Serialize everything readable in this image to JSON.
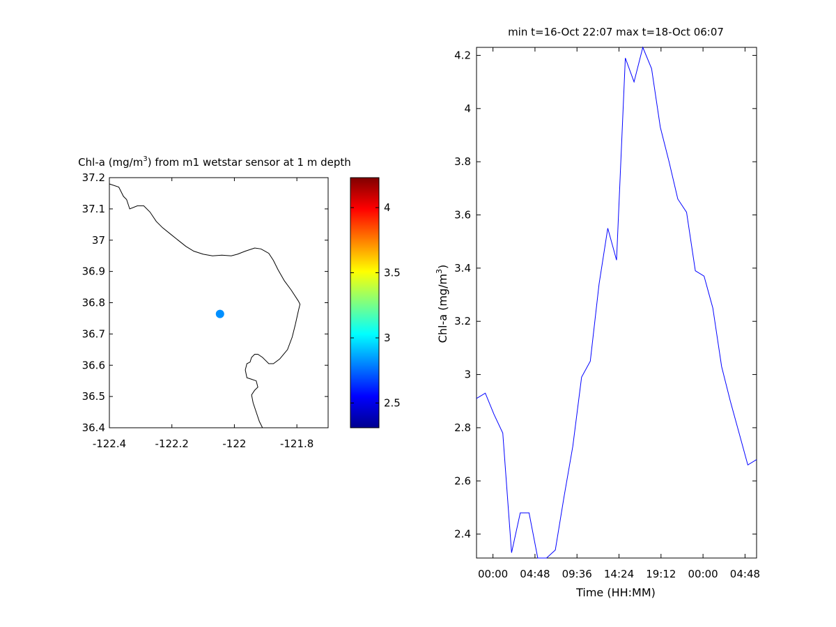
{
  "chart_data": [
    {
      "type": "map",
      "title_prefix": "Chl-a (mg/m",
      "title_sup": "3",
      "title_suffix": ") from m1 wetstar sensor at 1 m depth",
      "xlim": [
        -122.4,
        -121.7
      ],
      "ylim": [
        36.4,
        37.2
      ],
      "xticks": [
        -122.4,
        -122.2,
        -122,
        -121.8
      ],
      "yticks": [
        36.4,
        36.5,
        36.6,
        36.7,
        36.8,
        36.9,
        37,
        37.1,
        37.2
      ],
      "coastline": [
        [
          -122.4,
          37.18
        ],
        [
          -122.37,
          37.17
        ],
        [
          -122.355,
          37.14
        ],
        [
          -122.345,
          37.13
        ],
        [
          -122.335,
          37.1
        ],
        [
          -122.31,
          37.11
        ],
        [
          -122.29,
          37.11
        ],
        [
          -122.27,
          37.09
        ],
        [
          -122.25,
          37.06
        ],
        [
          -122.23,
          37.04
        ],
        [
          -122.205,
          37.02
        ],
        [
          -122.18,
          37.0
        ],
        [
          -122.155,
          36.98
        ],
        [
          -122.13,
          36.965
        ],
        [
          -122.1,
          36.955
        ],
        [
          -122.07,
          36.95
        ],
        [
          -122.04,
          36.952
        ],
        [
          -122.01,
          36.95
        ],
        [
          -121.99,
          36.955
        ],
        [
          -121.965,
          36.965
        ],
        [
          -121.935,
          36.975
        ],
        [
          -121.915,
          36.972
        ],
        [
          -121.89,
          36.958
        ],
        [
          -121.875,
          36.935
        ],
        [
          -121.86,
          36.905
        ],
        [
          -121.84,
          36.87
        ],
        [
          -121.818,
          36.84
        ],
        [
          -121.795,
          36.805
        ],
        [
          -121.79,
          36.795
        ],
        [
          -121.795,
          36.775
        ],
        [
          -121.805,
          36.73
        ],
        [
          -121.815,
          36.69
        ],
        [
          -121.83,
          36.65
        ],
        [
          -121.855,
          36.62
        ],
        [
          -121.875,
          36.605
        ],
        [
          -121.89,
          36.605
        ],
        [
          -121.91,
          36.625
        ],
        [
          -121.925,
          36.635
        ],
        [
          -121.935,
          36.635
        ],
        [
          -121.945,
          36.625
        ],
        [
          -121.95,
          36.61
        ],
        [
          -121.96,
          36.605
        ],
        [
          -121.965,
          36.585
        ],
        [
          -121.96,
          36.56
        ],
        [
          -121.945,
          36.555
        ],
        [
          -121.93,
          36.55
        ],
        [
          -121.925,
          36.53
        ],
        [
          -121.935,
          36.52
        ],
        [
          -121.945,
          36.505
        ],
        [
          -121.94,
          36.48
        ],
        [
          -121.93,
          36.45
        ],
        [
          -121.92,
          36.42
        ],
        [
          -121.91,
          36.4
        ]
      ],
      "points": [
        {
          "lon": -122.046,
          "lat": 36.764,
          "value": 2.82
        }
      ],
      "colorbar": {
        "range": [
          2.31,
          4.23
        ],
        "ticks": [
          2.5,
          3,
          3.5,
          4
        ]
      }
    },
    {
      "type": "line",
      "title": "min t=16-Oct 22:07 max t=18-Oct 06:07",
      "xlabel": "Time (HH:MM)",
      "ylabel_prefix": "Chl-a (mg/m",
      "ylabel_sup": "3",
      "ylabel_suffix": ")",
      "x_unit": "hours from 16-Oct 22:07",
      "xlim": [
        0,
        32
      ],
      "ylim": [
        2.31,
        4.23
      ],
      "xticks": [
        {
          "value": 1.88,
          "label": "00:00"
        },
        {
          "value": 6.68,
          "label": "04:48"
        },
        {
          "value": 11.48,
          "label": "09:36"
        },
        {
          "value": 16.28,
          "label": "14:24"
        },
        {
          "value": 21.08,
          "label": "19:12"
        },
        {
          "value": 25.88,
          "label": "00:00"
        },
        {
          "value": 30.68,
          "label": "04:48"
        }
      ],
      "yticks": [
        2.4,
        2.6,
        2.8,
        3,
        3.2,
        3.4,
        3.6,
        3.8,
        4,
        4.2
      ],
      "series": [
        {
          "color": "#0000ff",
          "x": [
            0,
            1,
            2,
            3,
            4,
            5,
            6,
            7,
            8,
            9,
            10,
            11,
            12,
            13,
            14,
            15,
            16,
            17,
            18,
            19,
            20,
            21,
            22,
            23,
            24,
            25,
            26,
            27,
            28,
            29,
            30,
            31,
            32
          ],
          "y": [
            2.91,
            2.93,
            2.85,
            2.78,
            2.33,
            2.48,
            2.48,
            2.31,
            2.31,
            2.34,
            2.54,
            2.73,
            2.99,
            3.05,
            3.34,
            3.55,
            3.43,
            4.19,
            4.1,
            4.23,
            4.15,
            3.93,
            3.8,
            3.66,
            3.61,
            3.39,
            3.37,
            3.25,
            3.03,
            2.9,
            2.78,
            2.66,
            2.68
          ]
        }
      ]
    }
  ]
}
